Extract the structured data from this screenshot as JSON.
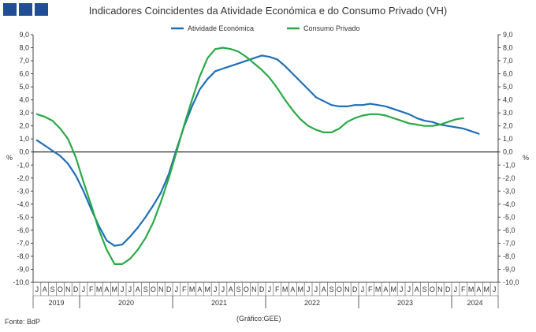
{
  "chart_data": {
    "type": "line",
    "title": "Indicadores Coincidentes da Atividade Económica e do Consumo Privado (VH)",
    "ylabel_left": "%",
    "ylabel_right": "%",
    "ylim": [
      -10,
      9
    ],
    "yticks": [
      "9,0",
      "8,0",
      "7,0",
      "6,0",
      "5,0",
      "4,0",
      "3,0",
      "2,0",
      "1,0",
      "0,0",
      "-1,0",
      "-2,0",
      "-3,0",
      "-4,0",
      "-5,0",
      "-6,0",
      "-7,0",
      "-8,0",
      "-9,0",
      "-10,0"
    ],
    "month_labels": [
      "J",
      "A",
      "S",
      "O",
      "N",
      "D",
      "J",
      "F",
      "M",
      "A",
      "M",
      "J",
      "J",
      "A",
      "S",
      "O",
      "N",
      "D",
      "J",
      "F",
      "M",
      "A",
      "M",
      "J",
      "J",
      "A",
      "S",
      "O",
      "N",
      "D",
      "J",
      "F",
      "M",
      "A",
      "M",
      "J",
      "J",
      "A",
      "S",
      "O",
      "N",
      "D",
      "J",
      "F",
      "M",
      "A",
      "M",
      "J",
      "J",
      "A",
      "S",
      "O",
      "N",
      "D",
      "J",
      "F",
      "M",
      "A",
      "M",
      "J"
    ],
    "year_labels": [
      {
        "label": "2019",
        "start": 0,
        "end": 6
      },
      {
        "label": "2020",
        "start": 6,
        "end": 18
      },
      {
        "label": "2021",
        "start": 18,
        "end": 30
      },
      {
        "label": "2022",
        "start": 30,
        "end": 42
      },
      {
        "label": "2023",
        "start": 42,
        "end": 54
      },
      {
        "label": "2024",
        "start": 54,
        "end": 60
      }
    ],
    "series": [
      {
        "name": "Atividade Económica",
        "color": "#1f6fb5",
        "values": [
          0.9,
          0.5,
          0.1,
          -0.3,
          -0.9,
          -1.8,
          -3.0,
          -4.4,
          -5.7,
          -6.8,
          -7.2,
          -7.1,
          -6.5,
          -5.8,
          -5.0,
          -4.1,
          -3.1,
          -1.7,
          0.2,
          2.0,
          3.5,
          4.8,
          5.6,
          6.2,
          6.4,
          6.6,
          6.8,
          7.0,
          7.2,
          7.4,
          7.3,
          7.1,
          6.6,
          6.0,
          5.4,
          4.8,
          4.2,
          3.9,
          3.6,
          3.5,
          3.5,
          3.6,
          3.6,
          3.7,
          3.6,
          3.5,
          3.3,
          3.1,
          2.9,
          2.6,
          2.4,
          2.3,
          2.1,
          2.0,
          1.9,
          1.8,
          1.6,
          1.4
        ]
      },
      {
        "name": "Consumo Privado",
        "color": "#2aa845",
        "values": [
          2.9,
          2.7,
          2.4,
          1.8,
          1.0,
          -0.4,
          -2.3,
          -4.1,
          -6.0,
          -7.5,
          -8.6,
          -8.6,
          -8.2,
          -7.5,
          -6.6,
          -5.4,
          -3.8,
          -2.0,
          0.0,
          2.1,
          4.0,
          5.8,
          7.2,
          7.9,
          8.0,
          7.9,
          7.7,
          7.3,
          6.8,
          6.3,
          5.7,
          4.9,
          4.0,
          3.2,
          2.5,
          2.0,
          1.7,
          1.5,
          1.5,
          1.8,
          2.3,
          2.6,
          2.8,
          2.9,
          2.9,
          2.8,
          2.6,
          2.4,
          2.2,
          2.1,
          2.0,
          2.0,
          2.1,
          2.3,
          2.5,
          2.6
        ]
      }
    ]
  },
  "footer": {
    "source": "Fonte: BdP",
    "credit": "(Gráfico:GEE)"
  }
}
